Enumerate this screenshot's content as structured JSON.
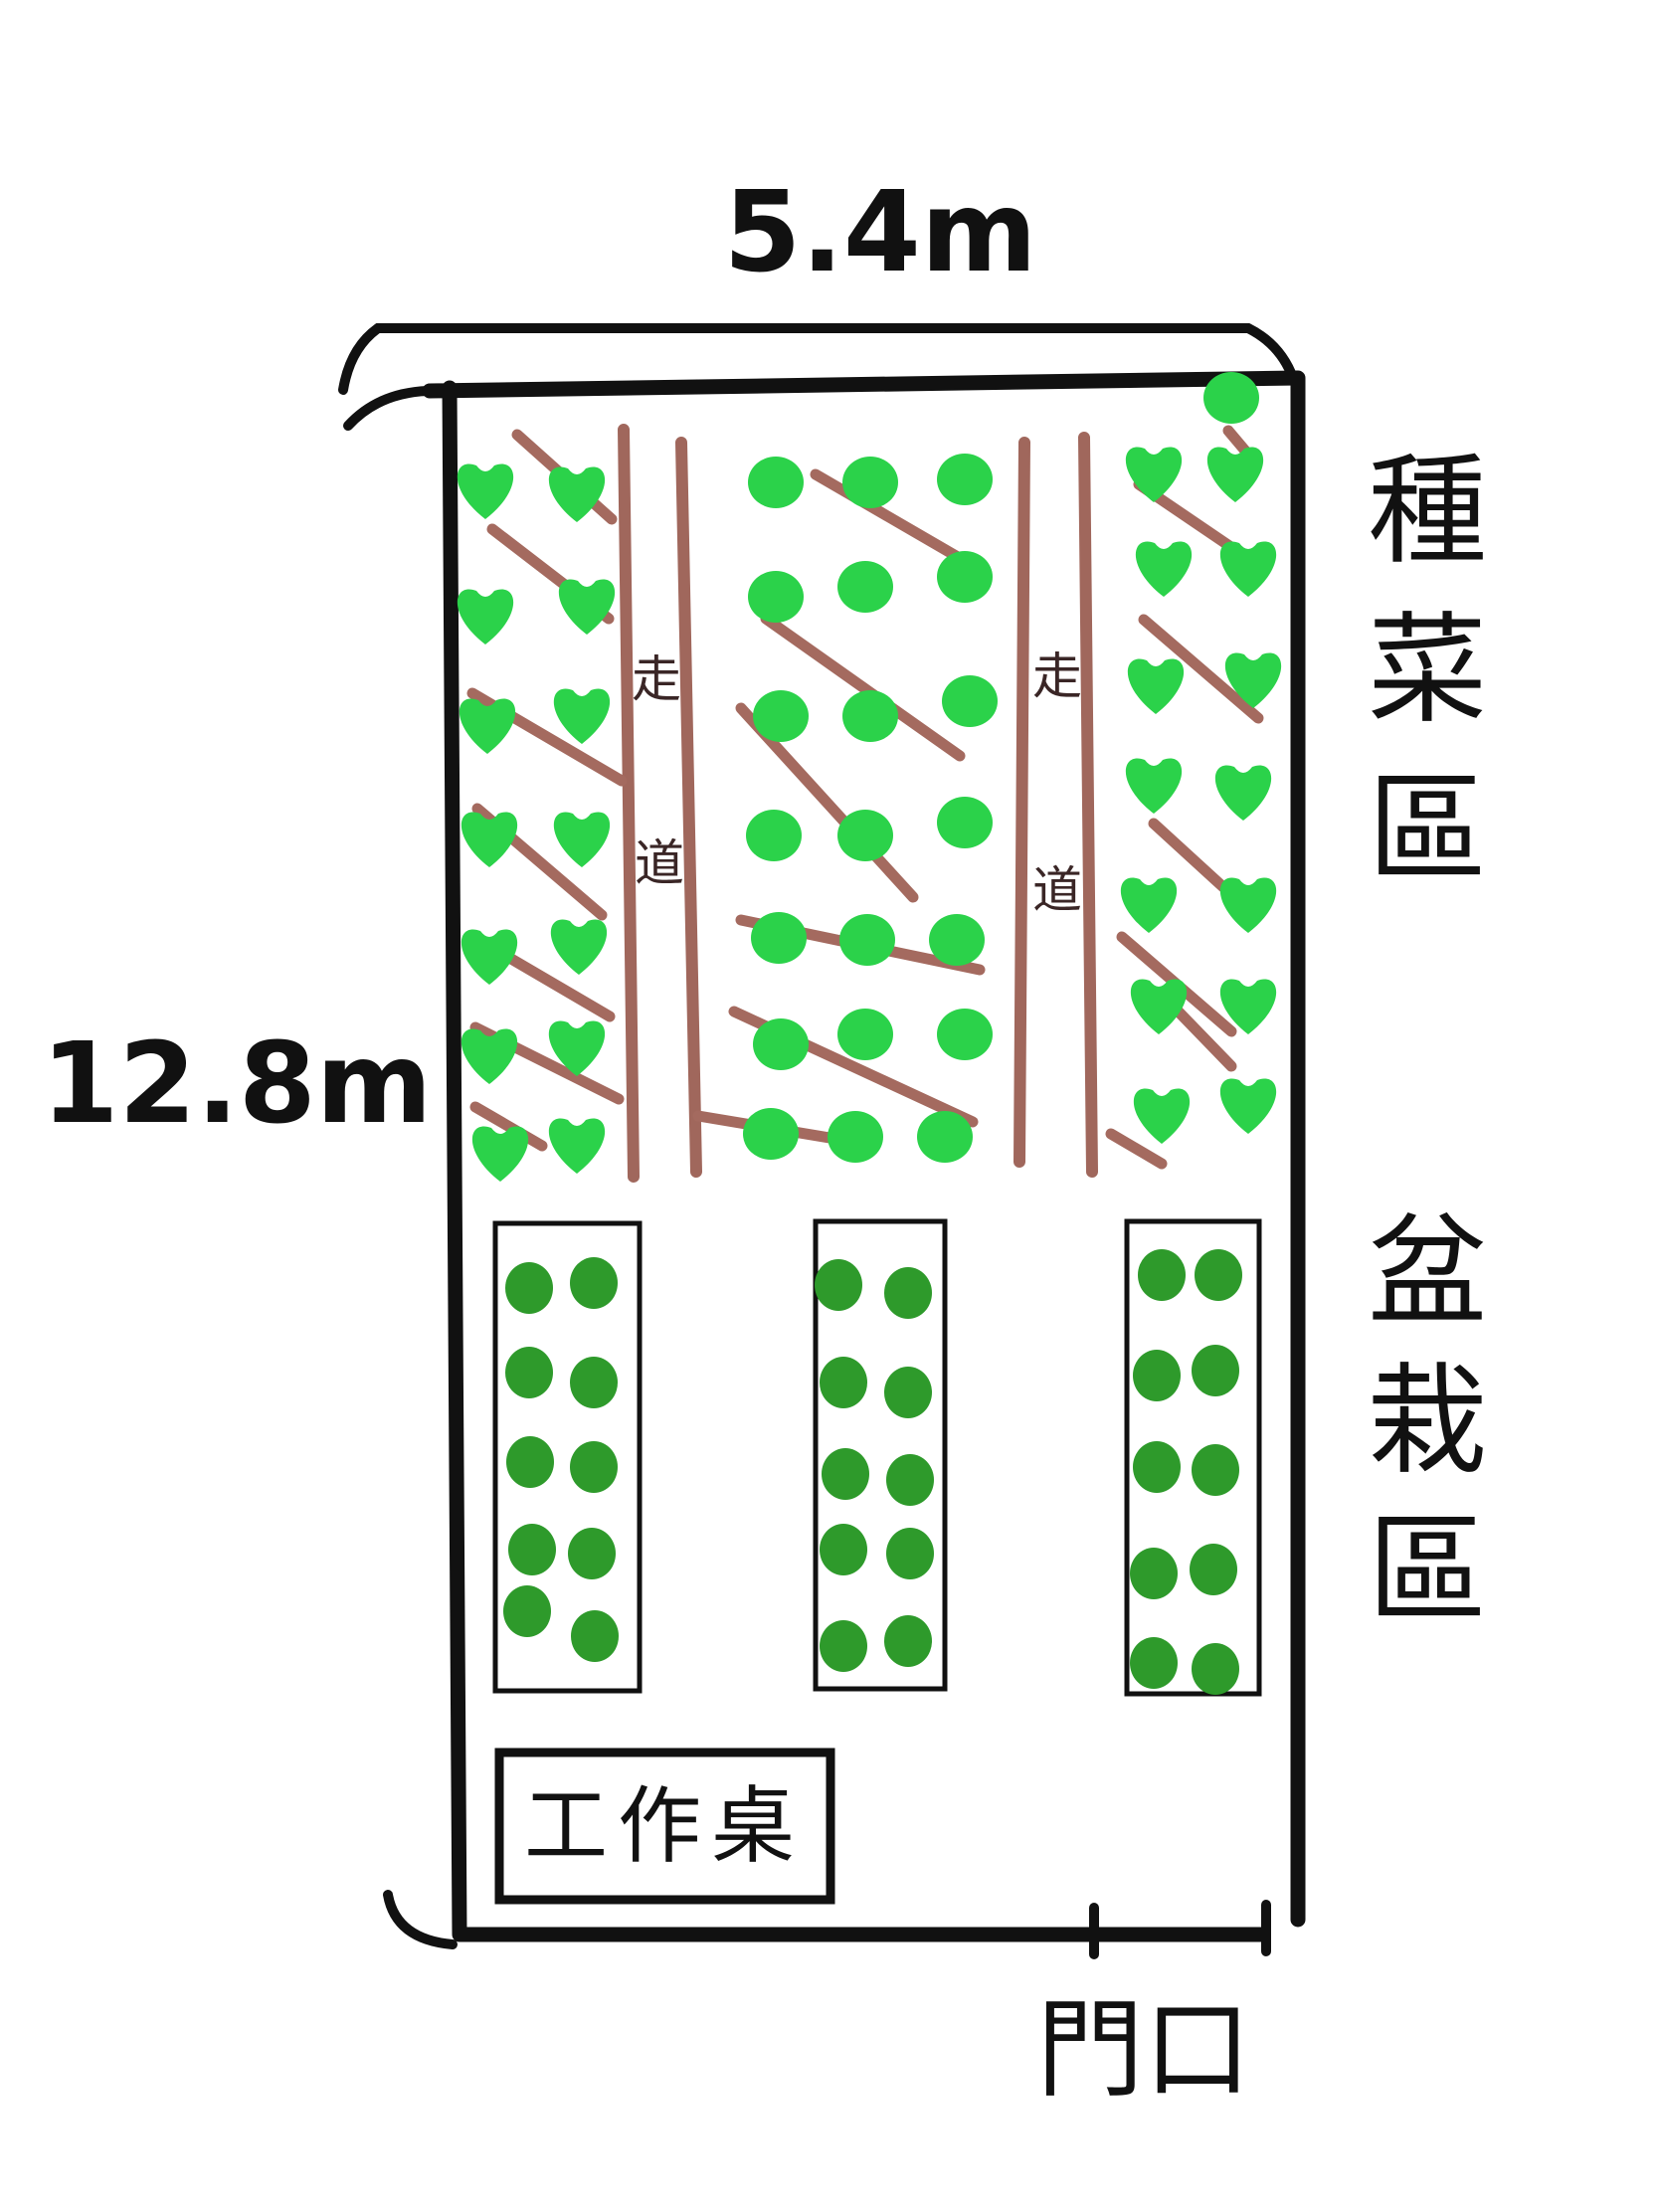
{
  "dimensions": {
    "width": "5.4m",
    "height": "12.8m"
  },
  "zones": {
    "vegetable": "種菜區",
    "potted": "盆栽區"
  },
  "walkway": [
    "走",
    "道"
  ],
  "desk": "工作桌",
  "door": "門口",
  "colors": {
    "outline": "#111111",
    "walkway_brown": "#a0675c",
    "vine_brown": "#a46a5f",
    "leaf_bright": "#2bd24a",
    "leaf_dark": "#2e9a2b"
  }
}
